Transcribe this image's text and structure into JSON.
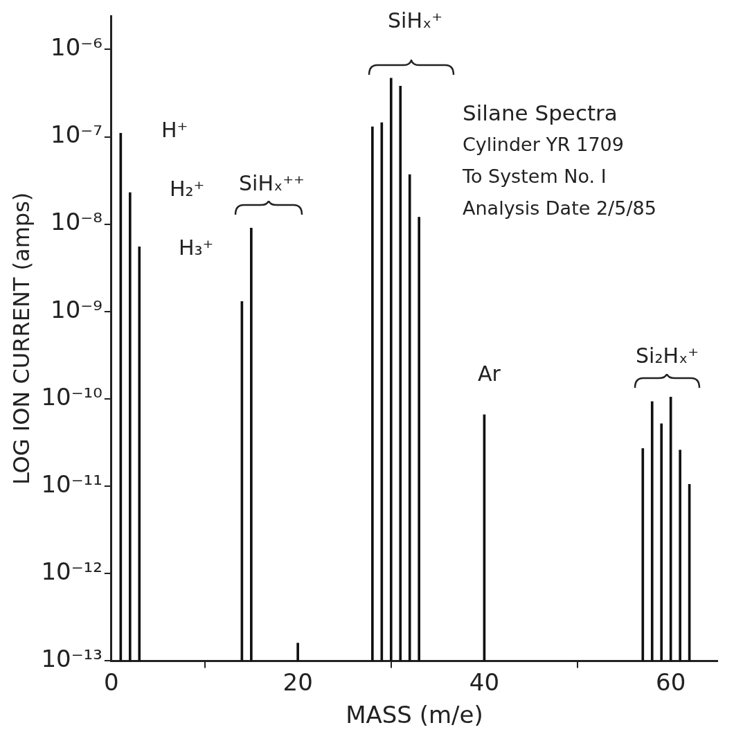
{
  "chart_data": {
    "type": "bar",
    "xlabel": "MASS (m/e)",
    "ylabel": "LOG ION CURRENT (amps)",
    "x": [
      1,
      2,
      3,
      14,
      15,
      20,
      28,
      29,
      30,
      31,
      32,
      33,
      40,
      57,
      58,
      59,
      60,
      61,
      62
    ],
    "values": [
      1.1e-07,
      2.3e-08,
      5.5e-09,
      1.3e-09,
      9e-09,
      1.6e-13,
      1.3e-07,
      1.45e-07,
      4.7e-07,
      3.8e-07,
      3.7e-08,
      1.2e-08,
      6.6e-11,
      2.7e-11,
      9.3e-11,
      5.2e-11,
      1.05e-10,
      2.6e-11,
      1.05e-11
    ],
    "color": "#111111",
    "log": true,
    "xlim": [
      0,
      65
    ],
    "xticks": [
      0,
      20,
      40,
      60
    ],
    "ylim": [
      1e-13,
      2.4e-06
    ],
    "yticks": [
      {
        "value": 1e-13,
        "label": "10⁻¹³"
      },
      {
        "value": 1e-12,
        "label": "10⁻¹²"
      },
      {
        "value": 1e-11,
        "label": "10⁻¹¹"
      },
      {
        "value": 1e-10,
        "label": "10⁻¹⁰"
      },
      {
        "value": 1e-09,
        "label": "10⁻⁹"
      },
      {
        "value": 1e-08,
        "label": "10⁻⁸"
      },
      {
        "value": 1e-07,
        "label": "10⁻⁷"
      },
      {
        "value": 1e-06,
        "label": "10⁻⁶"
      }
    ],
    "grid": false,
    "legend": false,
    "annotations": [
      "H⁺",
      "H₂⁺",
      "H₃⁺",
      "SiHₓ⁺⁺",
      "SiHₓ⁺",
      "Ar",
      "Si₂Hₓ⁺",
      "Silane Spectra",
      "Cylinder YR 1709",
      "To System No. I",
      "Analysis Date 2/5/85"
    ]
  }
}
